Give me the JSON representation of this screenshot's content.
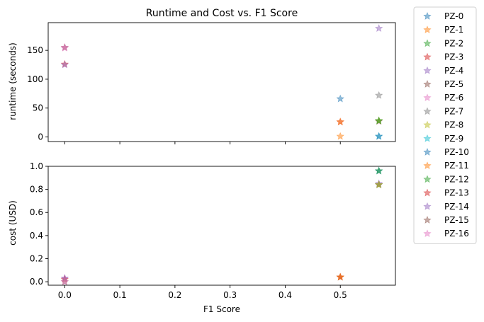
{
  "chart_data": [
    {
      "type": "scatter",
      "title": "Runtime and Cost vs. F1 Score",
      "xlabel": "",
      "ylabel": "runtime (seconds)",
      "xlim": [
        -0.03,
        0.6
      ],
      "ylim": [
        -8,
        198
      ],
      "xticks": [
        0.0,
        0.1,
        0.2,
        0.3,
        0.4,
        0.5
      ],
      "xtick_labels_visible": false,
      "yticks": [
        0,
        50,
        100,
        150
      ],
      "ytick_labels": [
        "0",
        "50",
        "100",
        "150"
      ],
      "marker": "star",
      "series": [
        {
          "name": "PZ-0",
          "color": "#1f77b4",
          "points": [
            [
              0.5,
              66
            ]
          ]
        },
        {
          "name": "PZ-1",
          "color": "#ff7f0e",
          "points": [
            [
              0.5,
              1
            ]
          ]
        },
        {
          "name": "PZ-2",
          "color": "#2ca02c",
          "points": [
            [
              0.57,
              28
            ]
          ]
        },
        {
          "name": "PZ-3",
          "color": "#d62728",
          "points": [
            [
              0.5,
              26
            ]
          ]
        },
        {
          "name": "PZ-4",
          "color": "#9467bd",
          "points": [
            [
              0.57,
              188
            ]
          ]
        },
        {
          "name": "PZ-5",
          "color": "#8c564b",
          "points": [
            [
              0.57,
              27
            ]
          ]
        },
        {
          "name": "PZ-6",
          "color": "#e377c2",
          "points": [
            [
              0.0,
              154
            ]
          ]
        },
        {
          "name": "PZ-7",
          "color": "#7f7f7f",
          "points": [
            [
              0.57,
              72
            ]
          ]
        },
        {
          "name": "PZ-8",
          "color": "#bcbd22",
          "points": [
            [
              0.57,
              28
            ]
          ]
        },
        {
          "name": "PZ-9",
          "color": "#17becf",
          "points": [
            [
              0.57,
              1
            ]
          ]
        },
        {
          "name": "PZ-10",
          "color": "#1f77b4",
          "points": [
            [
              0.57,
              1
            ]
          ]
        },
        {
          "name": "PZ-11",
          "color": "#ff7f0e",
          "points": [
            [
              0.5,
              26
            ]
          ]
        },
        {
          "name": "PZ-12",
          "color": "#2ca02c",
          "points": [
            [
              0.57,
              28
            ]
          ]
        },
        {
          "name": "PZ-13",
          "color": "#d62728",
          "points": [
            [
              0.0,
              126
            ]
          ]
        },
        {
          "name": "PZ-14",
          "color": "#9467bd",
          "points": [
            [
              0.0,
              125
            ]
          ]
        },
        {
          "name": "PZ-15",
          "color": "#8c564b",
          "points": [
            [
              0.0,
              155
            ]
          ]
        },
        {
          "name": "PZ-16",
          "color": "#e377c2",
          "points": [
            [
              0.0,
              155
            ]
          ]
        }
      ]
    },
    {
      "type": "scatter",
      "title": "",
      "xlabel": "F1 Score",
      "ylabel": "cost (USD)",
      "xlim": [
        -0.03,
        0.6
      ],
      "ylim": [
        -0.03,
        1.0
      ],
      "xticks": [
        0.0,
        0.1,
        0.2,
        0.3,
        0.4,
        0.5
      ],
      "xtick_labels": [
        "0.0",
        "0.1",
        "0.2",
        "0.3",
        "0.4",
        "0.5"
      ],
      "yticks": [
        0.0,
        0.2,
        0.4,
        0.6,
        0.8,
        1.0
      ],
      "ytick_labels": [
        "0.0",
        "0.2",
        "0.4",
        "0.6",
        "0.8",
        "1.0"
      ],
      "marker": "star",
      "series": [
        {
          "name": "PZ-0",
          "color": "#1f77b4",
          "points": [
            [
              0.5,
              0.04
            ]
          ]
        },
        {
          "name": "PZ-1",
          "color": "#ff7f0e",
          "points": [
            [
              0.5,
              0.04
            ]
          ]
        },
        {
          "name": "PZ-2",
          "color": "#2ca02c",
          "points": [
            [
              0.57,
              0.84
            ]
          ]
        },
        {
          "name": "PZ-3",
          "color": "#d62728",
          "points": [
            [
              0.5,
              0.04
            ]
          ]
        },
        {
          "name": "PZ-4",
          "color": "#9467bd",
          "points": [
            [
              0.57,
              0.85
            ]
          ]
        },
        {
          "name": "PZ-5",
          "color": "#8c564b",
          "points": [
            [
              0.57,
              0.84
            ]
          ]
        },
        {
          "name": "PZ-6",
          "color": "#e377c2",
          "points": [
            [
              0.0,
              0.03
            ]
          ]
        },
        {
          "name": "PZ-7",
          "color": "#7f7f7f",
          "points": [
            [
              0.57,
              0.84
            ]
          ]
        },
        {
          "name": "PZ-8",
          "color": "#bcbd22",
          "points": [
            [
              0.57,
              0.84
            ]
          ]
        },
        {
          "name": "PZ-9",
          "color": "#17becf",
          "points": [
            [
              0.57,
              0.96
            ]
          ]
        },
        {
          "name": "PZ-10",
          "color": "#1f77b4",
          "points": [
            [
              0.57,
              0.96
            ]
          ]
        },
        {
          "name": "PZ-11",
          "color": "#ff7f0e",
          "points": [
            [
              0.5,
              0.04
            ]
          ]
        },
        {
          "name": "PZ-12",
          "color": "#2ca02c",
          "points": [
            [
              0.57,
              0.96
            ]
          ]
        },
        {
          "name": "PZ-13",
          "color": "#d62728",
          "points": [
            [
              0.0,
              0.02
            ]
          ]
        },
        {
          "name": "PZ-14",
          "color": "#9467bd",
          "points": [
            [
              0.0,
              0.03
            ]
          ]
        },
        {
          "name": "PZ-15",
          "color": "#8c564b",
          "points": [
            [
              0.0,
              0.0
            ]
          ]
        },
        {
          "name": "PZ-16",
          "color": "#e377c2",
          "points": [
            [
              0.0,
              0.0
            ]
          ]
        }
      ]
    }
  ],
  "legend": {
    "placement": "right",
    "entries": [
      {
        "label": "PZ-0",
        "color": "#1f77b4"
      },
      {
        "label": "PZ-1",
        "color": "#ff7f0e"
      },
      {
        "label": "PZ-2",
        "color": "#2ca02c"
      },
      {
        "label": "PZ-3",
        "color": "#d62728"
      },
      {
        "label": "PZ-4",
        "color": "#9467bd"
      },
      {
        "label": "PZ-5",
        "color": "#8c564b"
      },
      {
        "label": "PZ-6",
        "color": "#e377c2"
      },
      {
        "label": "PZ-7",
        "color": "#7f7f7f"
      },
      {
        "label": "PZ-8",
        "color": "#bcbd22"
      },
      {
        "label": "PZ-9",
        "color": "#17becf"
      },
      {
        "label": "PZ-10",
        "color": "#1f77b4"
      },
      {
        "label": "PZ-11",
        "color": "#ff7f0e"
      },
      {
        "label": "PZ-12",
        "color": "#2ca02c"
      },
      {
        "label": "PZ-13",
        "color": "#d62728"
      },
      {
        "label": "PZ-14",
        "color": "#9467bd"
      },
      {
        "label": "PZ-15",
        "color": "#8c564b"
      },
      {
        "label": "PZ-16",
        "color": "#e377c2"
      }
    ]
  }
}
